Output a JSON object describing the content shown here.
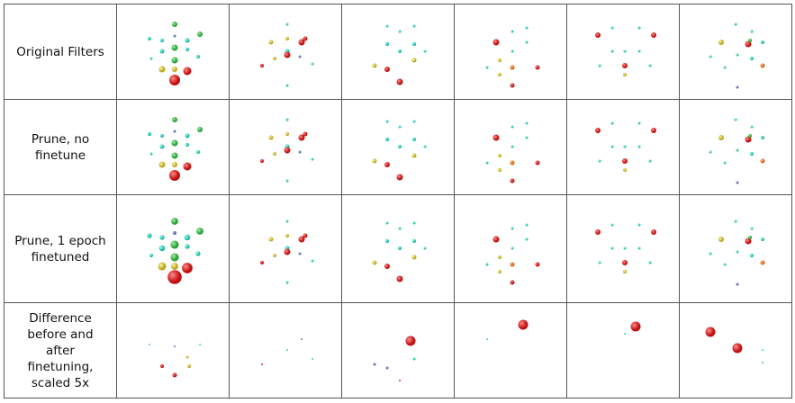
{
  "table": {
    "rows": [
      [
        "Original Filters"
      ],
      [
        "Prune, no finetune"
      ],
      [
        "Prune, 1 epoch finetuned"
      ],
      [
        "Difference before and after finetuning, scaled 5x"
      ]
    ]
  }
}
